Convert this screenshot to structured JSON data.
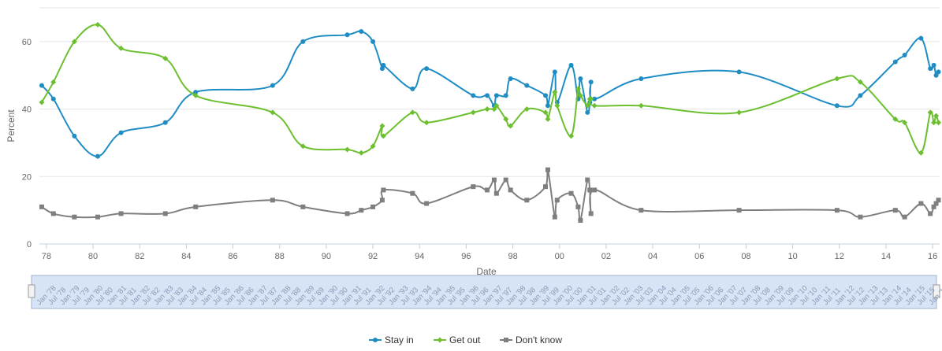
{
  "chart_data": {
    "type": "line",
    "title": "",
    "xlabel": "Date",
    "ylabel": "Percent",
    "xlim": [
      1977.7,
      2016.3
    ],
    "ylim": [
      0,
      70
    ],
    "y_ticks": [
      0,
      20,
      40,
      60
    ],
    "x_ticks": [
      {
        "v": 1978,
        "label": "78"
      },
      {
        "v": 1980,
        "label": "80"
      },
      {
        "v": 1982,
        "label": "82"
      },
      {
        "v": 1984,
        "label": "84"
      },
      {
        "v": 1986,
        "label": "86"
      },
      {
        "v": 1988,
        "label": "88"
      },
      {
        "v": 1990,
        "label": "90"
      },
      {
        "v": 1992,
        "label": "92"
      },
      {
        "v": 1994,
        "label": "94"
      },
      {
        "v": 1996,
        "label": "96"
      },
      {
        "v": 1998,
        "label": "98"
      },
      {
        "v": 2000,
        "label": "00"
      },
      {
        "v": 2002,
        "label": "02"
      },
      {
        "v": 2004,
        "label": "04"
      },
      {
        "v": 2006,
        "label": "06"
      },
      {
        "v": 2008,
        "label": "08"
      },
      {
        "v": 2010,
        "label": "10"
      },
      {
        "v": 2012,
        "label": "12"
      },
      {
        "v": 2014,
        "label": "14"
      },
      {
        "v": 2016,
        "label": "16"
      }
    ],
    "grid": "horizontal",
    "legend_position": "bottom-center",
    "series": [
      {
        "name": "Stay in",
        "color": "#1f8dc4",
        "marker": "circle",
        "points": [
          [
            1977.8,
            47
          ],
          [
            1978.3,
            43
          ],
          [
            1979.2,
            32
          ],
          [
            1980.2,
            26
          ],
          [
            1981.2,
            33
          ],
          [
            1983.1,
            36
          ],
          [
            1984.4,
            45
          ],
          [
            1987.7,
            47
          ],
          [
            1989.0,
            60
          ],
          [
            1990.9,
            62
          ],
          [
            1991.5,
            63
          ],
          [
            1992.0,
            60
          ],
          [
            1992.4,
            52
          ],
          [
            1992.45,
            53
          ],
          [
            1993.7,
            46
          ],
          [
            1994.3,
            52
          ],
          [
            1996.3,
            44
          ],
          [
            1996.9,
            44
          ],
          [
            1997.2,
            41
          ],
          [
            1997.3,
            44
          ],
          [
            1997.7,
            44
          ],
          [
            1997.9,
            49
          ],
          [
            1998.6,
            47
          ],
          [
            1999.4,
            44
          ],
          [
            1999.5,
            41
          ],
          [
            1999.8,
            51
          ],
          [
            1999.9,
            42
          ],
          [
            2000.5,
            53
          ],
          [
            2000.8,
            43
          ],
          [
            2000.9,
            49
          ],
          [
            2001.2,
            39
          ],
          [
            2001.3,
            42
          ],
          [
            2001.35,
            48
          ],
          [
            2001.5,
            43
          ],
          [
            2003.5,
            49
          ],
          [
            2007.7,
            51
          ],
          [
            2011.9,
            41
          ],
          [
            2012.9,
            44
          ],
          [
            2014.4,
            54
          ],
          [
            2014.8,
            56
          ],
          [
            2015.5,
            61
          ],
          [
            2015.9,
            52
          ],
          [
            2016.05,
            53
          ],
          [
            2016.15,
            50
          ],
          [
            2016.25,
            51
          ]
        ]
      },
      {
        "name": "Get out",
        "color": "#6cbf2f",
        "marker": "diamond",
        "points": [
          [
            1977.8,
            42
          ],
          [
            1978.3,
            48
          ],
          [
            1979.2,
            60
          ],
          [
            1980.2,
            65
          ],
          [
            1981.2,
            58
          ],
          [
            1983.1,
            55
          ],
          [
            1984.4,
            44
          ],
          [
            1987.7,
            39
          ],
          [
            1989.0,
            29
          ],
          [
            1990.9,
            28
          ],
          [
            1991.5,
            27
          ],
          [
            1992.0,
            29
          ],
          [
            1992.4,
            35
          ],
          [
            1992.45,
            32
          ],
          [
            1993.7,
            39
          ],
          [
            1994.3,
            36
          ],
          [
            1996.3,
            39
          ],
          [
            1996.9,
            40
          ],
          [
            1997.2,
            40
          ],
          [
            1997.3,
            41
          ],
          [
            1997.7,
            37
          ],
          [
            1997.9,
            35
          ],
          [
            1998.6,
            40
          ],
          [
            1999.4,
            39
          ],
          [
            1999.5,
            37
          ],
          [
            1999.8,
            45
          ],
          [
            1999.9,
            41
          ],
          [
            2000.5,
            32
          ],
          [
            2000.8,
            46
          ],
          [
            2000.9,
            44
          ],
          [
            2001.2,
            41
          ],
          [
            2001.3,
            43
          ],
          [
            2001.35,
            43
          ],
          [
            2001.5,
            41
          ],
          [
            2003.5,
            41
          ],
          [
            2007.7,
            39
          ],
          [
            2011.9,
            49
          ],
          [
            2012.9,
            48
          ],
          [
            2014.4,
            37
          ],
          [
            2014.8,
            36
          ],
          [
            2015.5,
            27
          ],
          [
            2015.9,
            39
          ],
          [
            2016.05,
            36
          ],
          [
            2016.15,
            38
          ],
          [
            2016.25,
            36
          ]
        ]
      },
      {
        "name": "Don't know",
        "color": "#7f7f7f",
        "marker": "square",
        "points": [
          [
            1977.8,
            11
          ],
          [
            1978.3,
            9
          ],
          [
            1979.2,
            8
          ],
          [
            1980.2,
            8
          ],
          [
            1981.2,
            9
          ],
          [
            1983.1,
            9
          ],
          [
            1984.4,
            11
          ],
          [
            1987.7,
            13
          ],
          [
            1989.0,
            11
          ],
          [
            1990.9,
            9
          ],
          [
            1991.5,
            10
          ],
          [
            1992.0,
            11
          ],
          [
            1992.4,
            13
          ],
          [
            1992.45,
            16
          ],
          [
            1993.7,
            15
          ],
          [
            1994.3,
            12
          ],
          [
            1996.3,
            17
          ],
          [
            1996.9,
            16
          ],
          [
            1997.2,
            19
          ],
          [
            1997.3,
            15
          ],
          [
            1997.7,
            19
          ],
          [
            1997.9,
            16
          ],
          [
            1998.6,
            13
          ],
          [
            1999.4,
            17
          ],
          [
            1999.5,
            22
          ],
          [
            1999.8,
            8
          ],
          [
            1999.9,
            13
          ],
          [
            2000.5,
            15
          ],
          [
            2000.8,
            11
          ],
          [
            2000.9,
            7
          ],
          [
            2001.2,
            19
          ],
          [
            2001.3,
            16
          ],
          [
            2001.35,
            9
          ],
          [
            2001.5,
            16
          ],
          [
            2003.5,
            10
          ],
          [
            2007.7,
            10
          ],
          [
            2011.9,
            10
          ],
          [
            2012.9,
            8
          ],
          [
            2014.4,
            10
          ],
          [
            2014.8,
            8
          ],
          [
            2015.5,
            12
          ],
          [
            2015.9,
            9
          ],
          [
            2016.05,
            11
          ],
          [
            2016.15,
            12
          ],
          [
            2016.25,
            13
          ]
        ]
      }
    ],
    "navigator_labels": [
      "Jan '78",
      "Jul '78",
      "Jan '79",
      "Jul '79",
      "Jan '80",
      "Jul '80",
      "Jan '81",
      "Jul '81",
      "Jan '82",
      "Jul '82",
      "Jan '83",
      "Jul '83",
      "Jan '84",
      "Jul '84",
      "Jan '85",
      "Jul '85",
      "Jan '86",
      "Jul '86",
      "Jan '87",
      "Jul '87",
      "Jan '88",
      "Jul '88",
      "Jan '89",
      "Jul '89",
      "Jan '90",
      "Jul '90",
      "Jan '91",
      "Jul '91",
      "Jan '92",
      "Jul '92",
      "Jan '93",
      "Jul '93",
      "Jan '94",
      "Jul '94",
      "Jan '95",
      "Jul '95",
      "Jan '96",
      "Jul '96",
      "Jan '97",
      "Jul '97",
      "Jan '98",
      "Jul '98",
      "Jan '99",
      "Jul '99",
      "Jan '00",
      "Jul '00",
      "Jan '01",
      "Jul '01",
      "Jan '02",
      "Jul '02",
      "Jan '03",
      "Jul '03",
      "Jan '04",
      "Jul '04",
      "Jan '05",
      "Jul '05",
      "Jan '06",
      "Jul '06",
      "Jan '07",
      "Jul '07",
      "Jan '08",
      "Jul '08",
      "Jan '09",
      "Jul '09",
      "Jan '10",
      "Jul '10",
      "Jan '11",
      "Jul '11",
      "Jan '12",
      "Jul '12",
      "Jan '13",
      "Jul '13",
      "Jan '14",
      "Jul '14",
      "Jan '15",
      "Jul '15",
      "Jan '16"
    ]
  }
}
